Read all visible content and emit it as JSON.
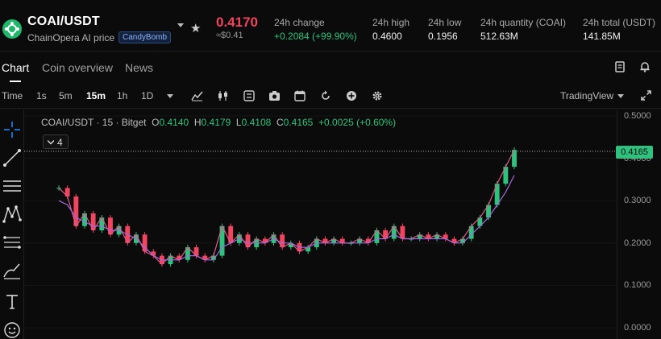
{
  "header": {
    "pair": "COAI/USDT",
    "name": "ChainOpera AI price",
    "tag": "CandyBomb",
    "price": "0.4170",
    "price_usd": "≈$0.41",
    "stats": [
      {
        "label": "24h change",
        "value": "+0.2084 (+99.90%)",
        "green": true
      },
      {
        "label": "24h high",
        "value": "0.4600"
      },
      {
        "label": "24h low",
        "value": "0.1956"
      },
      {
        "label": "24h quantity (COAI)",
        "value": "512.63M"
      },
      {
        "label": "24h total (USDT)",
        "value": "141.85M"
      }
    ]
  },
  "tabs": [
    "Chart",
    "Coin overview",
    "News"
  ],
  "toolbar": {
    "time_label": "Time",
    "intervals": [
      "1s",
      "5m",
      "15m",
      "1h",
      "1D"
    ],
    "active_interval": "15m",
    "view": "TradingView"
  },
  "legend": {
    "symbol": "COAI/USDT · 15 · Bitget",
    "o_label": "O",
    "o": "0.4140",
    "h_label": "H",
    "h": "0.4179",
    "l_label": "L",
    "l": "0.4108",
    "c_label": "C",
    "c": "0.4165",
    "change": "+0.0025 (+0.60%)",
    "indicator_count": "4"
  },
  "colors": {
    "up": "#2ec27e",
    "down": "#f0445f",
    "ma1": "#e05a8c",
    "ma2": "#a46bd6",
    "background": "#0b0b0b"
  },
  "chart_data": {
    "type": "line",
    "title": "COAI/USDT · 15 · Bitget",
    "y_ticks": [
      "0.5000",
      "0.4000",
      "0.3000",
      "0.2000",
      "0.1000",
      "0.0000"
    ],
    "ylim": [
      0,
      0.5
    ],
    "last_price": "0.4165",
    "series": [
      {
        "values": [
          0.33,
          0.31,
          0.24,
          0.27,
          0.23,
          0.26,
          0.22,
          0.24,
          0.2,
          0.22,
          0.18,
          0.17,
          0.15,
          0.17,
          0.16,
          0.19,
          0.17,
          0.16,
          0.17,
          0.24,
          0.2,
          0.22,
          0.19,
          0.21,
          0.2,
          0.22,
          0.19,
          0.2,
          0.18,
          0.19,
          0.21,
          0.2,
          0.21,
          0.2,
          0.2,
          0.21,
          0.2,
          0.23,
          0.21,
          0.24,
          0.21,
          0.21,
          0.22,
          0.21,
          0.22,
          0.21,
          0.2,
          0.21,
          0.24,
          0.26,
          0.29,
          0.34,
          0.38,
          0.42
        ]
      },
      {
        "values": [
          0.3,
          0.29,
          0.26,
          0.25,
          0.24,
          0.24,
          0.23,
          0.23,
          0.22,
          0.21,
          0.19,
          0.17,
          0.16,
          0.16,
          0.16,
          0.17,
          0.17,
          0.16,
          0.16,
          0.19,
          0.2,
          0.21,
          0.2,
          0.2,
          0.2,
          0.21,
          0.2,
          0.2,
          0.19,
          0.19,
          0.2,
          0.2,
          0.2,
          0.2,
          0.2,
          0.2,
          0.2,
          0.21,
          0.21,
          0.22,
          0.21,
          0.21,
          0.21,
          0.21,
          0.21,
          0.21,
          0.2,
          0.2,
          0.22,
          0.24,
          0.26,
          0.29,
          0.32,
          0.36
        ]
      }
    ]
  }
}
